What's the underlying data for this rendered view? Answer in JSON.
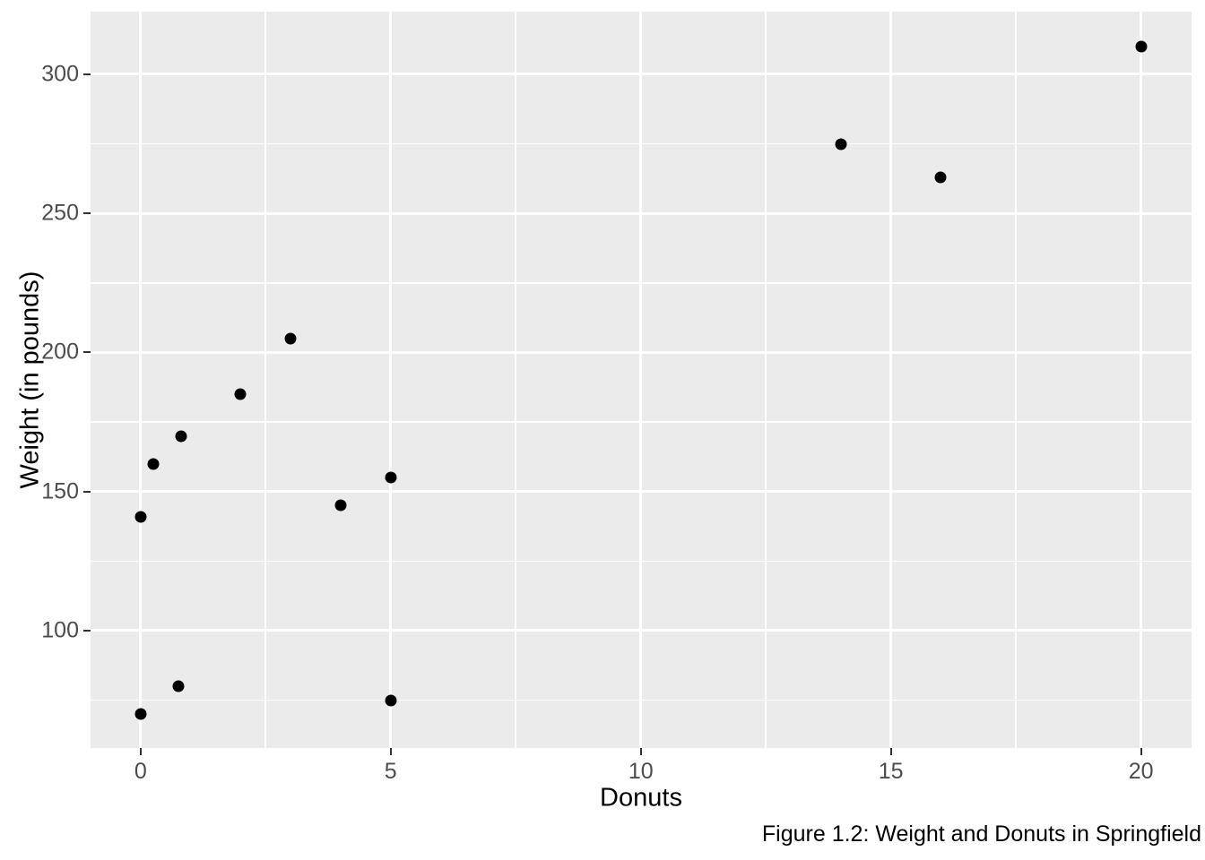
{
  "chart_data": {
    "type": "scatter",
    "title": "",
    "caption": "Figure 1.2: Weight and Donuts in Springfield",
    "xlabel": "Donuts",
    "ylabel": "Weight (in pounds)",
    "x_ticks": [
      0,
      5,
      10,
      15,
      20
    ],
    "x_minor_ticks": [
      2.5,
      7.5,
      12.5,
      17.5
    ],
    "y_ticks": [
      100,
      150,
      200,
      250,
      300
    ],
    "y_minor_ticks": [
      75,
      125,
      175,
      225,
      275
    ],
    "xlim": [
      -1.0,
      21.01
    ],
    "ylim": [
      57.8,
      322.5
    ],
    "grid": true,
    "legend_position": "none",
    "points": [
      {
        "x": 0,
        "y": 70
      },
      {
        "x": 0,
        "y": 141
      },
      {
        "x": 0.25,
        "y": 160
      },
      {
        "x": 0.76,
        "y": 80
      },
      {
        "x": 0.81,
        "y": 170
      },
      {
        "x": 2,
        "y": 185
      },
      {
        "x": 3,
        "y": 205
      },
      {
        "x": 4,
        "y": 145
      },
      {
        "x": 5,
        "y": 75
      },
      {
        "x": 5,
        "y": 155
      },
      {
        "x": 14,
        "y": 275
      },
      {
        "x": 16,
        "y": 263
      },
      {
        "x": 20,
        "y": 310
      }
    ],
    "style": {
      "background": "#FFFFFF",
      "panel_bg": "#EBEBEB",
      "grid_color": "#FFFFFF",
      "point_color": "#000000",
      "tick_label_color": "#4D4D4D",
      "tick_mark_color": "#333333",
      "axis_title_color": "#000000"
    }
  }
}
